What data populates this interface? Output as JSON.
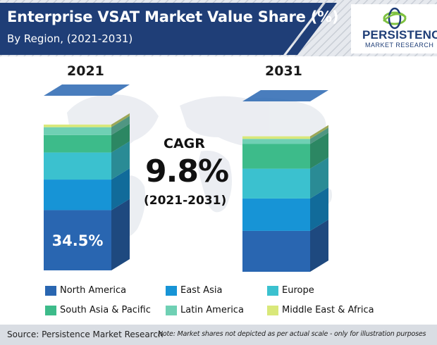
{
  "header": {
    "title": "Enterprise VSAT Market Value Share (%)",
    "subtitle": "By Region, (2021-2031)"
  },
  "logo": {
    "name": "PERSISTENCE",
    "tagline": "MARKET RESEARCH",
    "colors": {
      "primary": "#1f3e77",
      "accent": "#7fc241"
    }
  },
  "cagr": {
    "label": "CAGR",
    "value": "9.8%",
    "period": "(2021-2031)"
  },
  "chart_data": {
    "type": "bar",
    "stacked": true,
    "categories": [
      "2021",
      "2031"
    ],
    "ylim": [
      0,
      100
    ],
    "series": [
      {
        "name": "North America",
        "color": "#2966b1",
        "values": [
          34.5,
          24.0
        ]
      },
      {
        "name": "East Asia",
        "color": "#1794d6",
        "values": [
          17.5,
          19.0
        ]
      },
      {
        "name": "Europe",
        "color": "#3bc1cf",
        "values": [
          15.5,
          17.5
        ]
      },
      {
        "name": "South Asia & Pacific",
        "color": "#3dbb8a",
        "values": [
          10.0,
          14.5
        ]
      },
      {
        "name": "Latin America",
        "color": "#6fd0b4",
        "values": [
          4.5,
          3.0
        ]
      },
      {
        "name": "Middle East & Africa",
        "color": "#d9e87a",
        "values": [
          1.5,
          1.5
        ]
      }
    ],
    "data_labels": [
      {
        "series": "North America",
        "category": "2021",
        "text": "34.5%"
      }
    ]
  },
  "source": "Source: Persistence Market Research",
  "note": "Note: Market shares not depicted as per actual scale - only for illustration purposes"
}
